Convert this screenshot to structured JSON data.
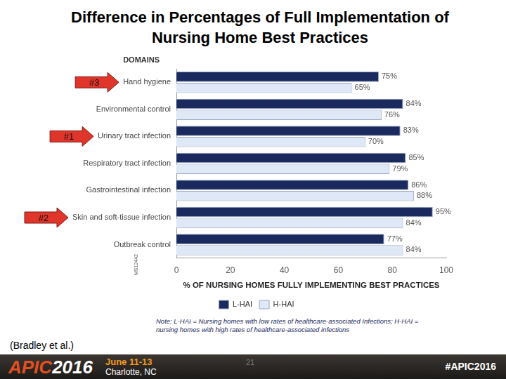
{
  "chart_data": {
    "type": "bar",
    "orientation": "horizontal",
    "title": "Difference in Percentages of Full Implementation of Nursing Home Best Practices",
    "ylabel": "DOMAINS",
    "xlabel": "% OF NURSING HOMES FULLY IMPLEMENTING BEST PRACTICES",
    "categories": [
      "Hand hygiene",
      "Environmental control",
      "Urinary tract infection",
      "Respiratory tract infection",
      "Gastrointestinal infection",
      "Skin and soft-tissue infection",
      "Outbreak control"
    ],
    "series": [
      {
        "name": "L-HAI",
        "color": "#1b2a5e",
        "values": [
          75,
          84,
          83,
          85,
          86,
          95,
          77
        ],
        "value_labels": [
          "75%",
          "84%",
          "83%",
          "85%",
          "86%",
          "95%",
          "77%"
        ]
      },
      {
        "name": "H-HAI",
        "color": "#dfe8f6",
        "values": [
          65,
          76,
          70,
          79,
          88,
          84,
          84
        ],
        "value_labels": [
          "65%",
          "76%",
          "70%",
          "79%",
          "88%",
          "84%",
          "84%"
        ]
      }
    ],
    "xlim": [
      0,
      100
    ],
    "xticks": [
      0,
      20,
      40,
      60,
      80,
      100
    ],
    "grid": false,
    "legend": "bottom",
    "data_labels": true,
    "annotations": [
      {
        "text": "#3",
        "category": "Hand hygiene"
      },
      {
        "text": "#1",
        "category": "Urinary tract infection"
      },
      {
        "text": "#2",
        "category": "Skin and soft-tissue infection"
      }
    ]
  },
  "slide": {
    "note": "Note: L-HAI = Nursing homes with low rates of healthcare-associated Infections; H-HAI = nursing homes with high rates of healthcare-associated infections",
    "code": "MS12442",
    "source": "(Bradley et al.)",
    "footer": {
      "logo": "APIC",
      "year": "2016",
      "dates": "June 11-13",
      "place": "Charlotte, NC",
      "page": "21",
      "hashtag": "#APIC2016"
    }
  }
}
